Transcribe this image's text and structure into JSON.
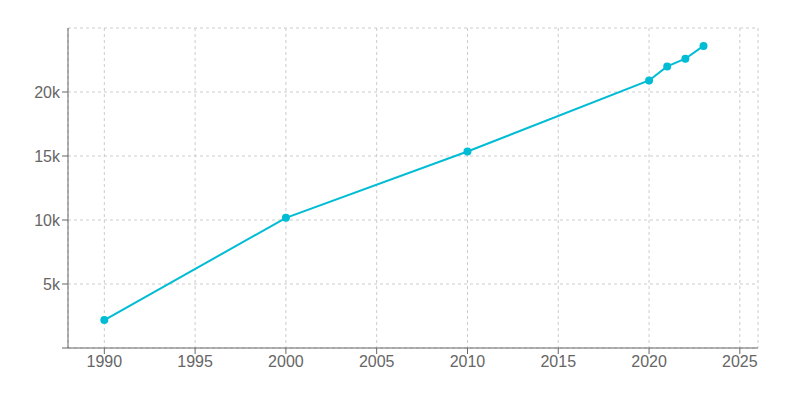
{
  "chart_data": {
    "type": "line",
    "x": [
      1990,
      2000,
      2010,
      2020,
      2021,
      2022,
      2023
    ],
    "values": [
      2181,
      10167,
      15355,
      20900,
      22000,
      22600,
      23600
    ],
    "color": "#00BCD4",
    "marker": "circle",
    "xlim": [
      1988,
      2026
    ],
    "xticks": [
      1990,
      1995,
      2000,
      2005,
      2010,
      2015,
      2020,
      2025
    ],
    "ylim": [
      0,
      25000
    ],
    "yticks": [
      {
        "value": 0,
        "label": null
      },
      {
        "value": 5000,
        "label": "5k"
      },
      {
        "value": 10000,
        "label": "10k"
      },
      {
        "value": 15000,
        "label": "15k"
      },
      {
        "value": 20000,
        "label": "20k"
      }
    ],
    "grid": true
  }
}
